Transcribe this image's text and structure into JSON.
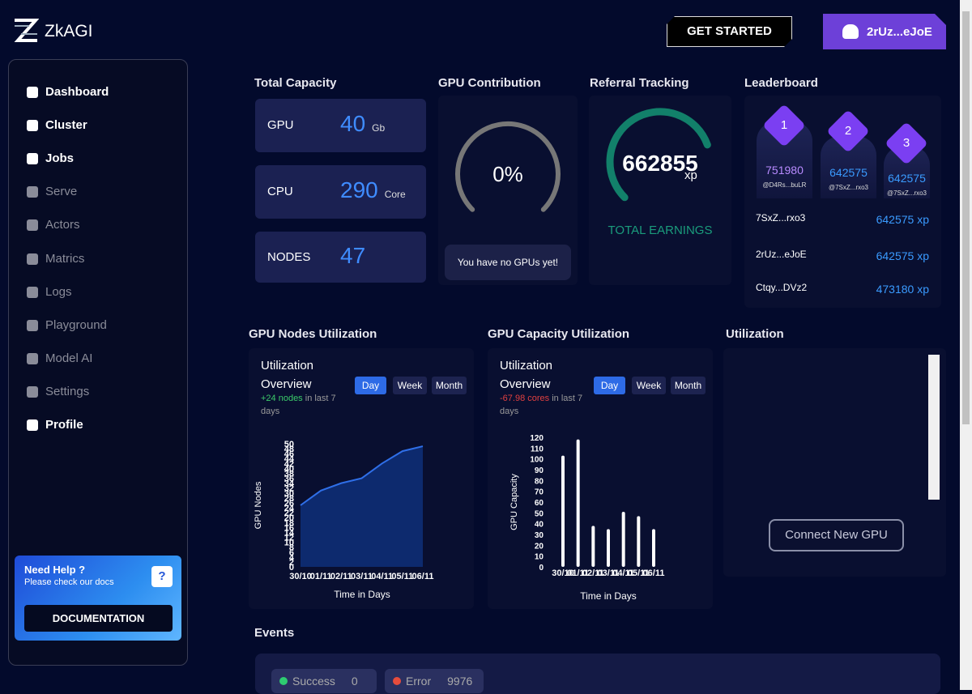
{
  "header": {
    "logo": "ZkAGI",
    "get_started": "GET STARTED",
    "wallet": "2rUz...eJoE"
  },
  "sidebar": {
    "nav": [
      "Dashboard",
      "Cluster",
      "Jobs",
      "Serve",
      "Actors",
      "Matrics",
      "Logs",
      "Playground",
      "Model AI",
      "Settings",
      "Profile"
    ],
    "help": {
      "title": "Need Help ?",
      "text": "Please check our docs",
      "icon": "?",
      "button": "DOCUMENTATION"
    }
  },
  "total_capacity": {
    "title": "Total Capacity",
    "items": [
      {
        "label": "GPU",
        "value": "40",
        "unit": "Gb"
      },
      {
        "label": "CPU",
        "value": "290",
        "unit": "Core"
      },
      {
        "label": "NODES",
        "value": "47"
      }
    ]
  },
  "gpu_contribution": {
    "title": "GPU Contribution",
    "percent": "0%",
    "message": "You have no GPUs yet!"
  },
  "referral": {
    "title": "Referral Tracking",
    "value": "662855",
    "unit": "xp",
    "caption": "TOTAL EARNINGS"
  },
  "leaderboard": {
    "title": "Leaderboard",
    "podium": [
      {
        "rank": "1",
        "score": "751980",
        "user": "@D4Rs...buLR"
      },
      {
        "rank": "2",
        "score": "642575",
        "user": "@7SxZ...rxo3"
      },
      {
        "rank": "3",
        "score": "642575",
        "user": "@7SxZ...rxo3"
      }
    ],
    "rows": [
      {
        "name": "7SxZ...rxo3",
        "score": "642575 xp"
      },
      {
        "name": "2rUz...eJoE",
        "score": "642575 xp"
      },
      {
        "name": "Ctqy...DVz2",
        "score": "473180 xp"
      }
    ]
  },
  "nodes_utilization": {
    "title": "GPU Nodes Utilization",
    "heading": "Utilization Overview",
    "tabs": [
      "Day",
      "Week",
      "Month"
    ],
    "change": "+24 nodes",
    "period": "in last 7 days"
  },
  "capacity_utilization": {
    "title": "GPU Capacity Utilization",
    "heading": "Utilization Overview",
    "tabs": [
      "Day",
      "Week",
      "Month"
    ],
    "change": "-67.98 cores",
    "period": "in last 7 days"
  },
  "utilization": {
    "title": "Utilization",
    "button": "Connect New GPU"
  },
  "events": {
    "title": "Events",
    "chips": [
      {
        "label": "Success",
        "count": "0"
      },
      {
        "label": "Error",
        "count": "9976"
      }
    ]
  },
  "chart_data": [
    {
      "type": "area",
      "x_label": "Time in Days",
      "y_label": "GPU Nodes",
      "categories": [
        "30/10",
        "01/11",
        "02/11",
        "03/11",
        "04/11",
        "05/11",
        "06/11"
      ],
      "values": [
        25,
        31,
        34,
        36,
        42,
        47,
        49
      ],
      "color": "#2f6fe8",
      "fill": "#0d2a6e",
      "ylim": [
        0,
        50
      ],
      "yticks": [
        0,
        2,
        4,
        6,
        8,
        10,
        12,
        14,
        16,
        18,
        20,
        22,
        24,
        26,
        28,
        30,
        32,
        34,
        36,
        38,
        40,
        42,
        44,
        46,
        48,
        50
      ]
    },
    {
      "type": "bar",
      "x_label": "Time in Days",
      "y_label": "GPU Capacity",
      "categories": [
        "30/10",
        "01/11",
        "02/11",
        "03/11",
        "04/11",
        "05/11",
        "06/11"
      ],
      "values": [
        103,
        118,
        38,
        35,
        51,
        47,
        35
      ],
      "color": "#ffffff",
      "ylim": [
        0,
        120
      ],
      "yticks": [
        0,
        10,
        20,
        30,
        40,
        50,
        60,
        70,
        80,
        90,
        100,
        110,
        120
      ]
    }
  ]
}
